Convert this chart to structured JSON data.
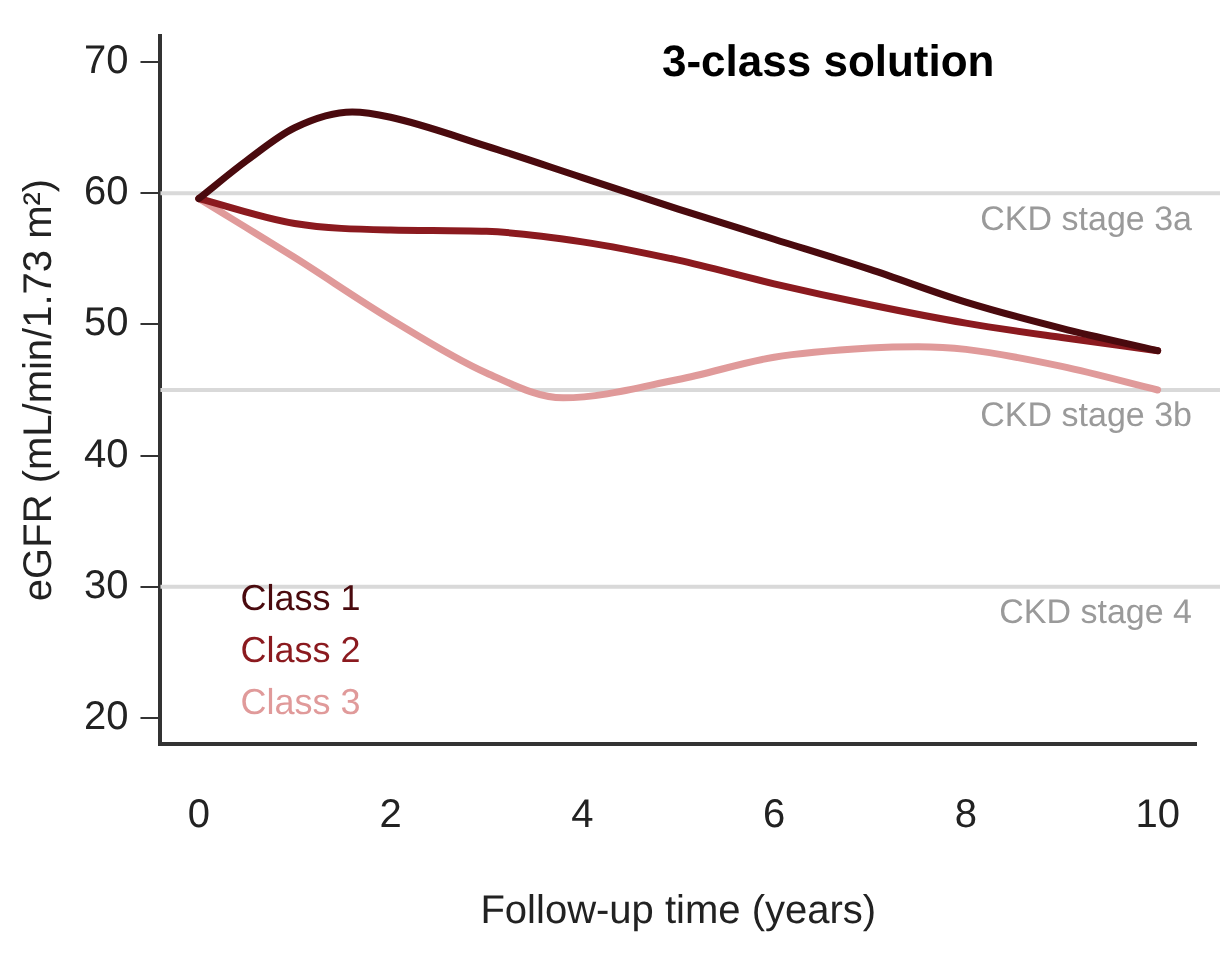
{
  "chart_data": {
    "type": "line",
    "title": "3-class solution",
    "xlabel": "Follow-up time (years)",
    "ylabel": "eGFR (mL/min/1.73 m²)",
    "xlim": [
      -0.4,
      10.4
    ],
    "ylim": [
      18,
      72
    ],
    "xticks": [
      0,
      2,
      4,
      6,
      8,
      10
    ],
    "yticks": [
      20,
      30,
      40,
      50,
      60,
      70
    ],
    "grid": false,
    "legend": "bottom left",
    "marker": "none",
    "line_style": "solid",
    "series": [
      {
        "name": "Class 1",
        "color": "#4a0a0e",
        "x": [
          0,
          0.5,
          1,
          1.6,
          2,
          3,
          4,
          5,
          6,
          7,
          8,
          9,
          10
        ],
        "values": [
          59.6,
          62.5,
          65,
          66.2,
          65.8,
          63.6,
          61.2,
          58.8,
          56.5,
          54.2,
          51.7,
          49.7,
          48.0
        ]
      },
      {
        "name": "Class 2",
        "color": "#8b1a1f",
        "x": [
          0,
          1,
          2,
          3,
          4,
          5,
          6,
          7,
          8,
          9,
          10
        ],
        "values": [
          59.6,
          57.7,
          57.2,
          57.1,
          56.3,
          54.9,
          53.1,
          51.5,
          50.1,
          49.0,
          48.0
        ]
      },
      {
        "name": "Class 3",
        "color": "#e09a9a",
        "x": [
          0,
          1,
          2,
          3,
          3.8,
          5,
          6,
          7,
          7.5,
          8,
          9,
          10
        ],
        "values": [
          59.6,
          55.1,
          50.4,
          46.3,
          44.4,
          45.8,
          47.5,
          48.2,
          48.3,
          48.1,
          46.8,
          45.0
        ]
      }
    ],
    "ref_lines": [
      {
        "axis": "y",
        "value": 60,
        "label": "CKD stage 3a",
        "color": "#d9d9d9"
      },
      {
        "axis": "y",
        "value": 45,
        "label": "CKD stage 3b",
        "color": "#d9d9d9"
      },
      {
        "axis": "y",
        "value": 30,
        "label": "CKD stage 4",
        "color": "#d9d9d9"
      }
    ]
  }
}
